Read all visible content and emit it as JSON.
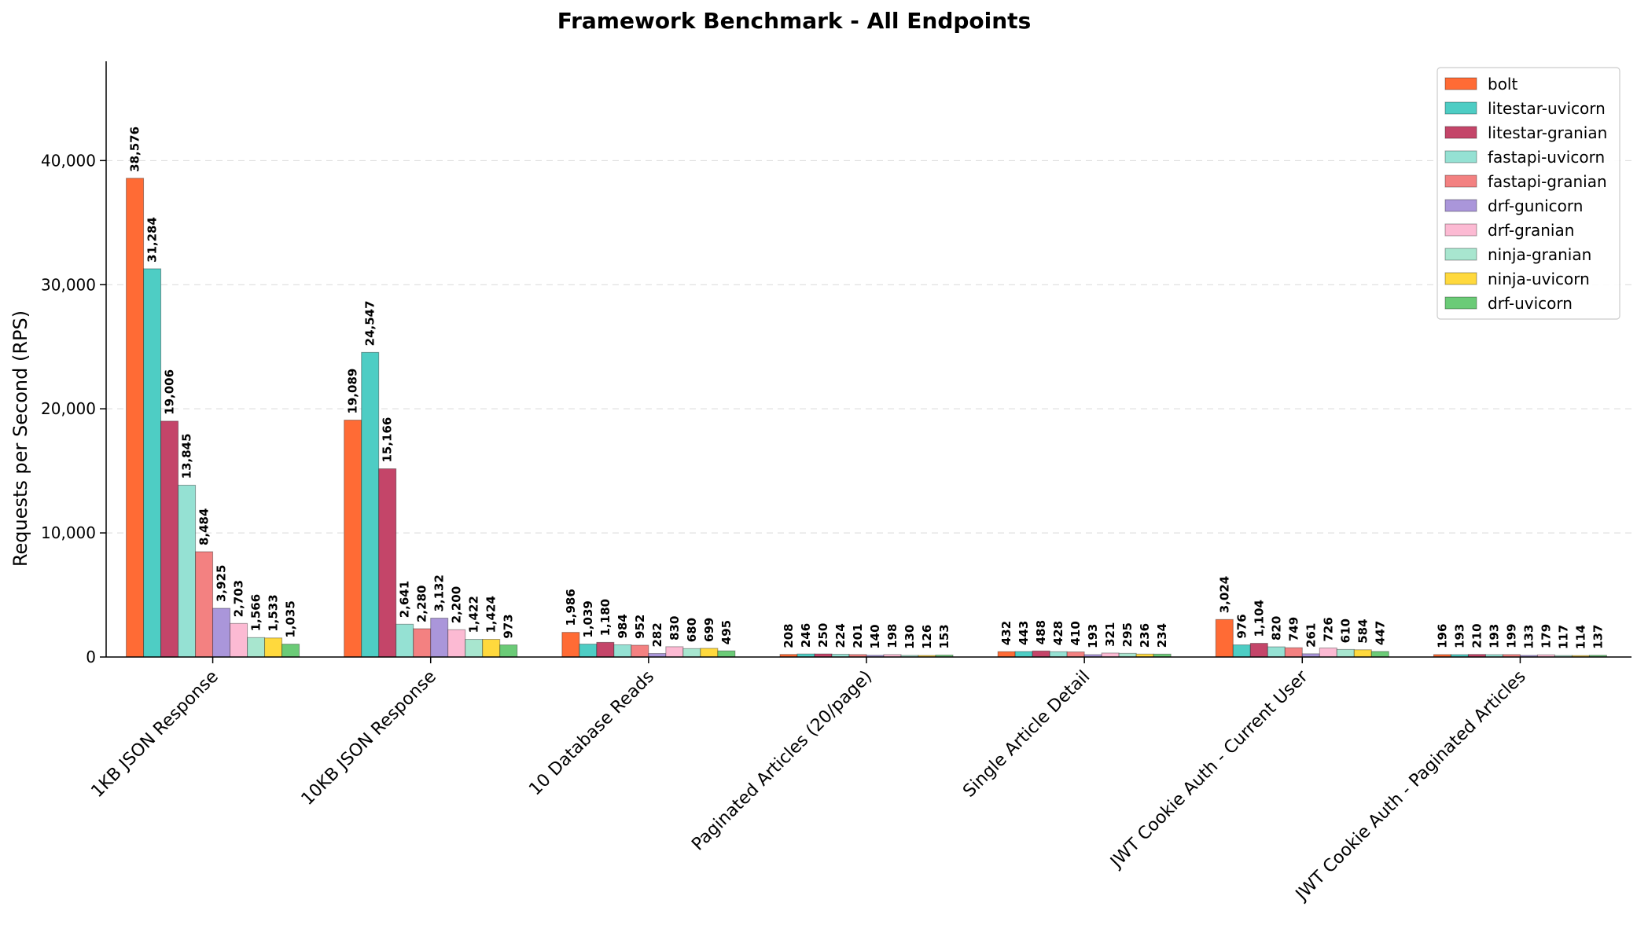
{
  "chart_data": {
    "type": "bar",
    "title": "Framework Benchmark - All Endpoints",
    "xlabel": "",
    "ylabel": "Requests per Second (RPS)",
    "ylim": [
      0,
      48000
    ],
    "yticks": [
      0,
      10000,
      20000,
      30000,
      40000
    ],
    "ytick_labels": [
      "0",
      "10,000",
      "20,000",
      "30,000",
      "40,000"
    ],
    "grid": true,
    "legend_position": "top-right",
    "categories": [
      "1KB JSON Response",
      "10KB JSON Response",
      "10 Database Reads",
      "Paginated Articles (20/page)",
      "Single Article Detail",
      "JWT Cookie Auth - Current User",
      "JWT Cookie Auth - Paginated Articles"
    ],
    "series": [
      {
        "name": "bolt",
        "color": "#ff6b35",
        "values": [
          38576,
          19089,
          1986,
          208,
          432,
          3024,
          196
        ],
        "labels": [
          "38,576",
          "19,089",
          "1,986",
          "208",
          "432",
          "3,024",
          "196"
        ]
      },
      {
        "name": "litestar-uvicorn",
        "color": "#4ecdc4",
        "values": [
          31284,
          24547,
          1039,
          246,
          443,
          976,
          193
        ],
        "labels": [
          "31,284",
          "24,547",
          "1,039",
          "246",
          "443",
          "976",
          "193"
        ]
      },
      {
        "name": "litestar-granian",
        "color": "#c44569",
        "values": [
          19006,
          15166,
          1180,
          250,
          488,
          1104,
          210
        ],
        "labels": [
          "19,006",
          "15,166",
          "1,180",
          "250",
          "488",
          "1,104",
          "210"
        ]
      },
      {
        "name": "fastapi-uvicorn",
        "color": "#95e1d3",
        "values": [
          13845,
          2641,
          984,
          224,
          428,
          820,
          193
        ],
        "labels": [
          "13,845",
          "2,641",
          "984",
          "224",
          "428",
          "820",
          "193"
        ]
      },
      {
        "name": "fastapi-granian",
        "color": "#f38181",
        "values": [
          8484,
          2280,
          952,
          201,
          410,
          749,
          199
        ],
        "labels": [
          "8,484",
          "2,280",
          "952",
          "201",
          "410",
          "749",
          "199"
        ]
      },
      {
        "name": "drf-gunicorn",
        "color": "#aa96da",
        "values": [
          3925,
          3132,
          282,
          140,
          193,
          261,
          133
        ],
        "labels": [
          "3,925",
          "3,132",
          "282",
          "140",
          "193",
          "261",
          "133"
        ]
      },
      {
        "name": "drf-granian",
        "color": "#fcbad3",
        "values": [
          2703,
          2200,
          830,
          198,
          321,
          726,
          179
        ],
        "labels": [
          "2,703",
          "2,200",
          "830",
          "198",
          "321",
          "726",
          "179"
        ]
      },
      {
        "name": "ninja-granian",
        "color": "#a8e6cf",
        "values": [
          1566,
          1422,
          680,
          130,
          295,
          610,
          117
        ],
        "labels": [
          "1,566",
          "1,422",
          "680",
          "130",
          "295",
          "610",
          "117"
        ]
      },
      {
        "name": "ninja-uvicorn",
        "color": "#ffd93d",
        "values": [
          1533,
          1424,
          699,
          126,
          236,
          584,
          114
        ],
        "labels": [
          "1,533",
          "1,424",
          "699",
          "126",
          "236",
          "584",
          "114"
        ]
      },
      {
        "name": "drf-uvicorn",
        "color": "#6bcb77",
        "values": [
          1035,
          973,
          495,
          153,
          234,
          447,
          137
        ],
        "labels": [
          "1,035",
          "973",
          "495",
          "153",
          "234",
          "447",
          "137"
        ]
      }
    ]
  }
}
